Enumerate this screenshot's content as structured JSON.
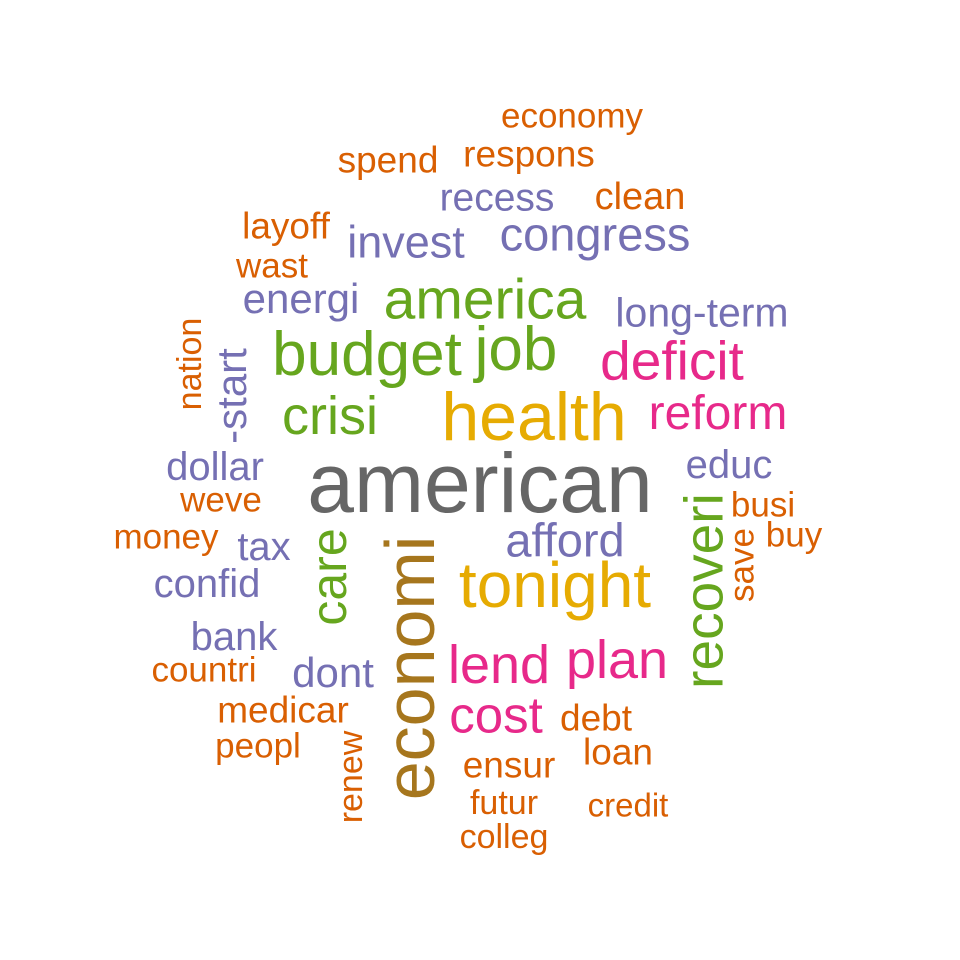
{
  "words": {
    "economy": "economy",
    "spend": "spend",
    "respons": "respons",
    "recess": "recess",
    "clean": "clean",
    "layoff": "layoff",
    "invest": "invest",
    "congress": "congress",
    "wast": "wast",
    "energi": "energi",
    "america": "america",
    "long_term": "long-term",
    "nation": "nation",
    "start": "-start",
    "budget": "budget",
    "job": "job",
    "deficit": "deficit",
    "crisi": "crisi",
    "health": "health",
    "reform": "reform",
    "dollar": "dollar",
    "american": "american",
    "educ": "educ",
    "weve": "weve",
    "recoveri": "recoveri",
    "busi": "busi",
    "money": "money",
    "tax": "tax",
    "care": "care",
    "economi": "economi",
    "afford": "afford",
    "save": "save",
    "buy": "buy",
    "tonight": "tonight",
    "confid": "confid",
    "bank": "bank",
    "countri": "countri",
    "dont": "dont",
    "lend": "lend",
    "plan": "plan",
    "medicar": "medicar",
    "cost": "cost",
    "debt": "debt",
    "peopl": "peopl",
    "renew": "renew",
    "loan": "loan",
    "ensur": "ensur",
    "futur": "futur",
    "credit": "credit",
    "colleg": "colleg"
  },
  "colors": {
    "orange": "#d95f02",
    "purple": "#7570b3",
    "green": "#66a61e",
    "pink": "#e7298a",
    "gold": "#e6ab02",
    "brown": "#a6761d",
    "gray": "#666666"
  }
}
